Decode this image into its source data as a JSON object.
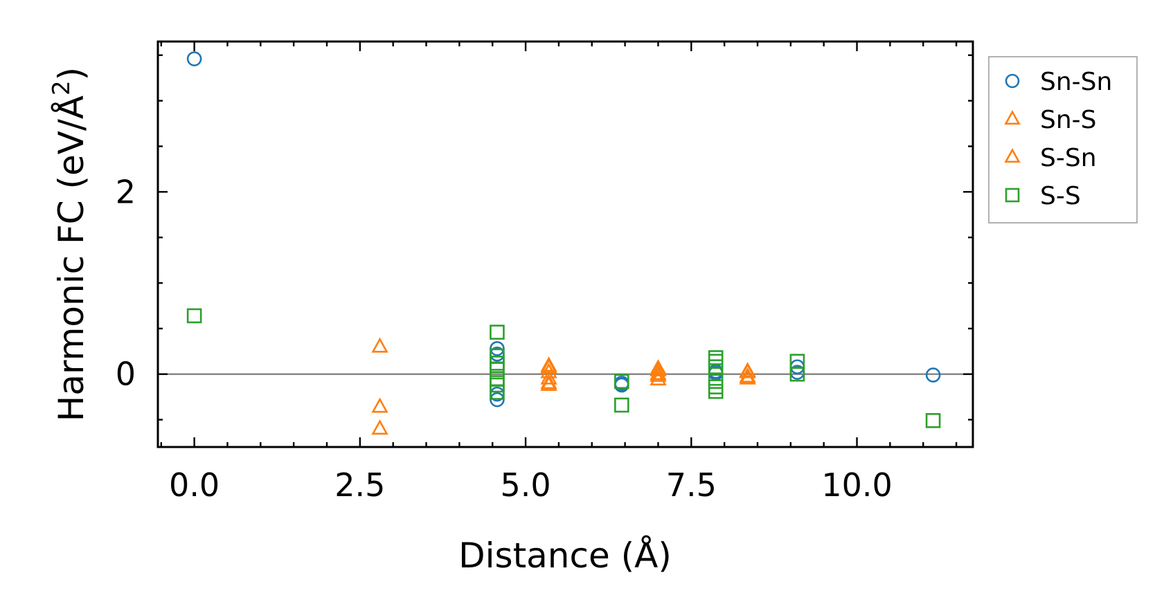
{
  "chart_data": {
    "type": "scatter",
    "xlabel": "Distance (Å)",
    "ylabel_main": "Harmonic FC (eV/Å",
    "ylabel_sup": "2",
    "ylabel_end": ")",
    "xlim": [
      -0.55,
      11.75
    ],
    "ylim": [
      -0.8,
      3.65
    ],
    "xticks": [
      0.0,
      2.5,
      5.0,
      7.5,
      10.0
    ],
    "xtick_labels": [
      "0.0",
      "2.5",
      "5.0",
      "7.5",
      "10.0"
    ],
    "yticks": [
      0,
      2
    ],
    "ytick_labels": [
      "0",
      "2"
    ],
    "zero_line": true,
    "grid": false,
    "legend_position": "outside-right-top",
    "series": [
      {
        "name": "Sn-Sn",
        "marker": "circle",
        "color": "#1f77b4",
        "points": [
          [
            0.0,
            3.46
          ],
          [
            4.57,
            0.28
          ],
          [
            4.57,
            0.22
          ],
          [
            4.57,
            -0.22
          ],
          [
            4.57,
            -0.28
          ],
          [
            6.45,
            -0.1
          ],
          [
            6.45,
            -0.12
          ],
          [
            7.87,
            0.03
          ],
          [
            7.87,
            0.01
          ],
          [
            9.1,
            0.08
          ],
          [
            9.1,
            0.02
          ],
          [
            11.15,
            -0.01
          ]
        ]
      },
      {
        "name": "Sn-S",
        "marker": "triangle",
        "color": "#ff7f0e",
        "points": [
          [
            2.8,
            0.3
          ],
          [
            2.8,
            -0.36
          ],
          [
            5.35,
            0.07
          ],
          [
            5.35,
            0.02
          ],
          [
            5.35,
            -0.1
          ],
          [
            7.0,
            0.04
          ],
          [
            7.0,
            -0.02
          ],
          [
            8.35,
            0.02
          ],
          [
            8.35,
            -0.05
          ]
        ]
      },
      {
        "name": "S-Sn",
        "marker": "triangle",
        "color": "#ff7f0e",
        "points": [
          [
            2.8,
            -0.6
          ],
          [
            5.35,
            0.09
          ],
          [
            5.35,
            -0.05
          ],
          [
            5.35,
            -0.12
          ],
          [
            7.0,
            0.06
          ],
          [
            7.0,
            0.0
          ],
          [
            7.0,
            -0.06
          ],
          [
            8.35,
            0.03
          ],
          [
            8.35,
            -0.03
          ]
        ]
      },
      {
        "name": "S-S",
        "marker": "square",
        "color": "#2ca02c",
        "points": [
          [
            0.0,
            0.64
          ],
          [
            4.57,
            0.46
          ],
          [
            4.57,
            0.2
          ],
          [
            4.57,
            0.12
          ],
          [
            4.57,
            0.05
          ],
          [
            4.57,
            -0.05
          ],
          [
            4.57,
            -0.12
          ],
          [
            4.57,
            -0.2
          ],
          [
            6.45,
            -0.08
          ],
          [
            6.45,
            -0.34
          ],
          [
            7.87,
            0.18
          ],
          [
            7.87,
            0.14
          ],
          [
            7.87,
            0.08
          ],
          [
            7.87,
            -0.08
          ],
          [
            7.87,
            -0.14
          ],
          [
            7.87,
            -0.19
          ],
          [
            9.1,
            0.14
          ],
          [
            9.1,
            0.0
          ],
          [
            11.15,
            -0.51
          ]
        ]
      }
    ]
  }
}
